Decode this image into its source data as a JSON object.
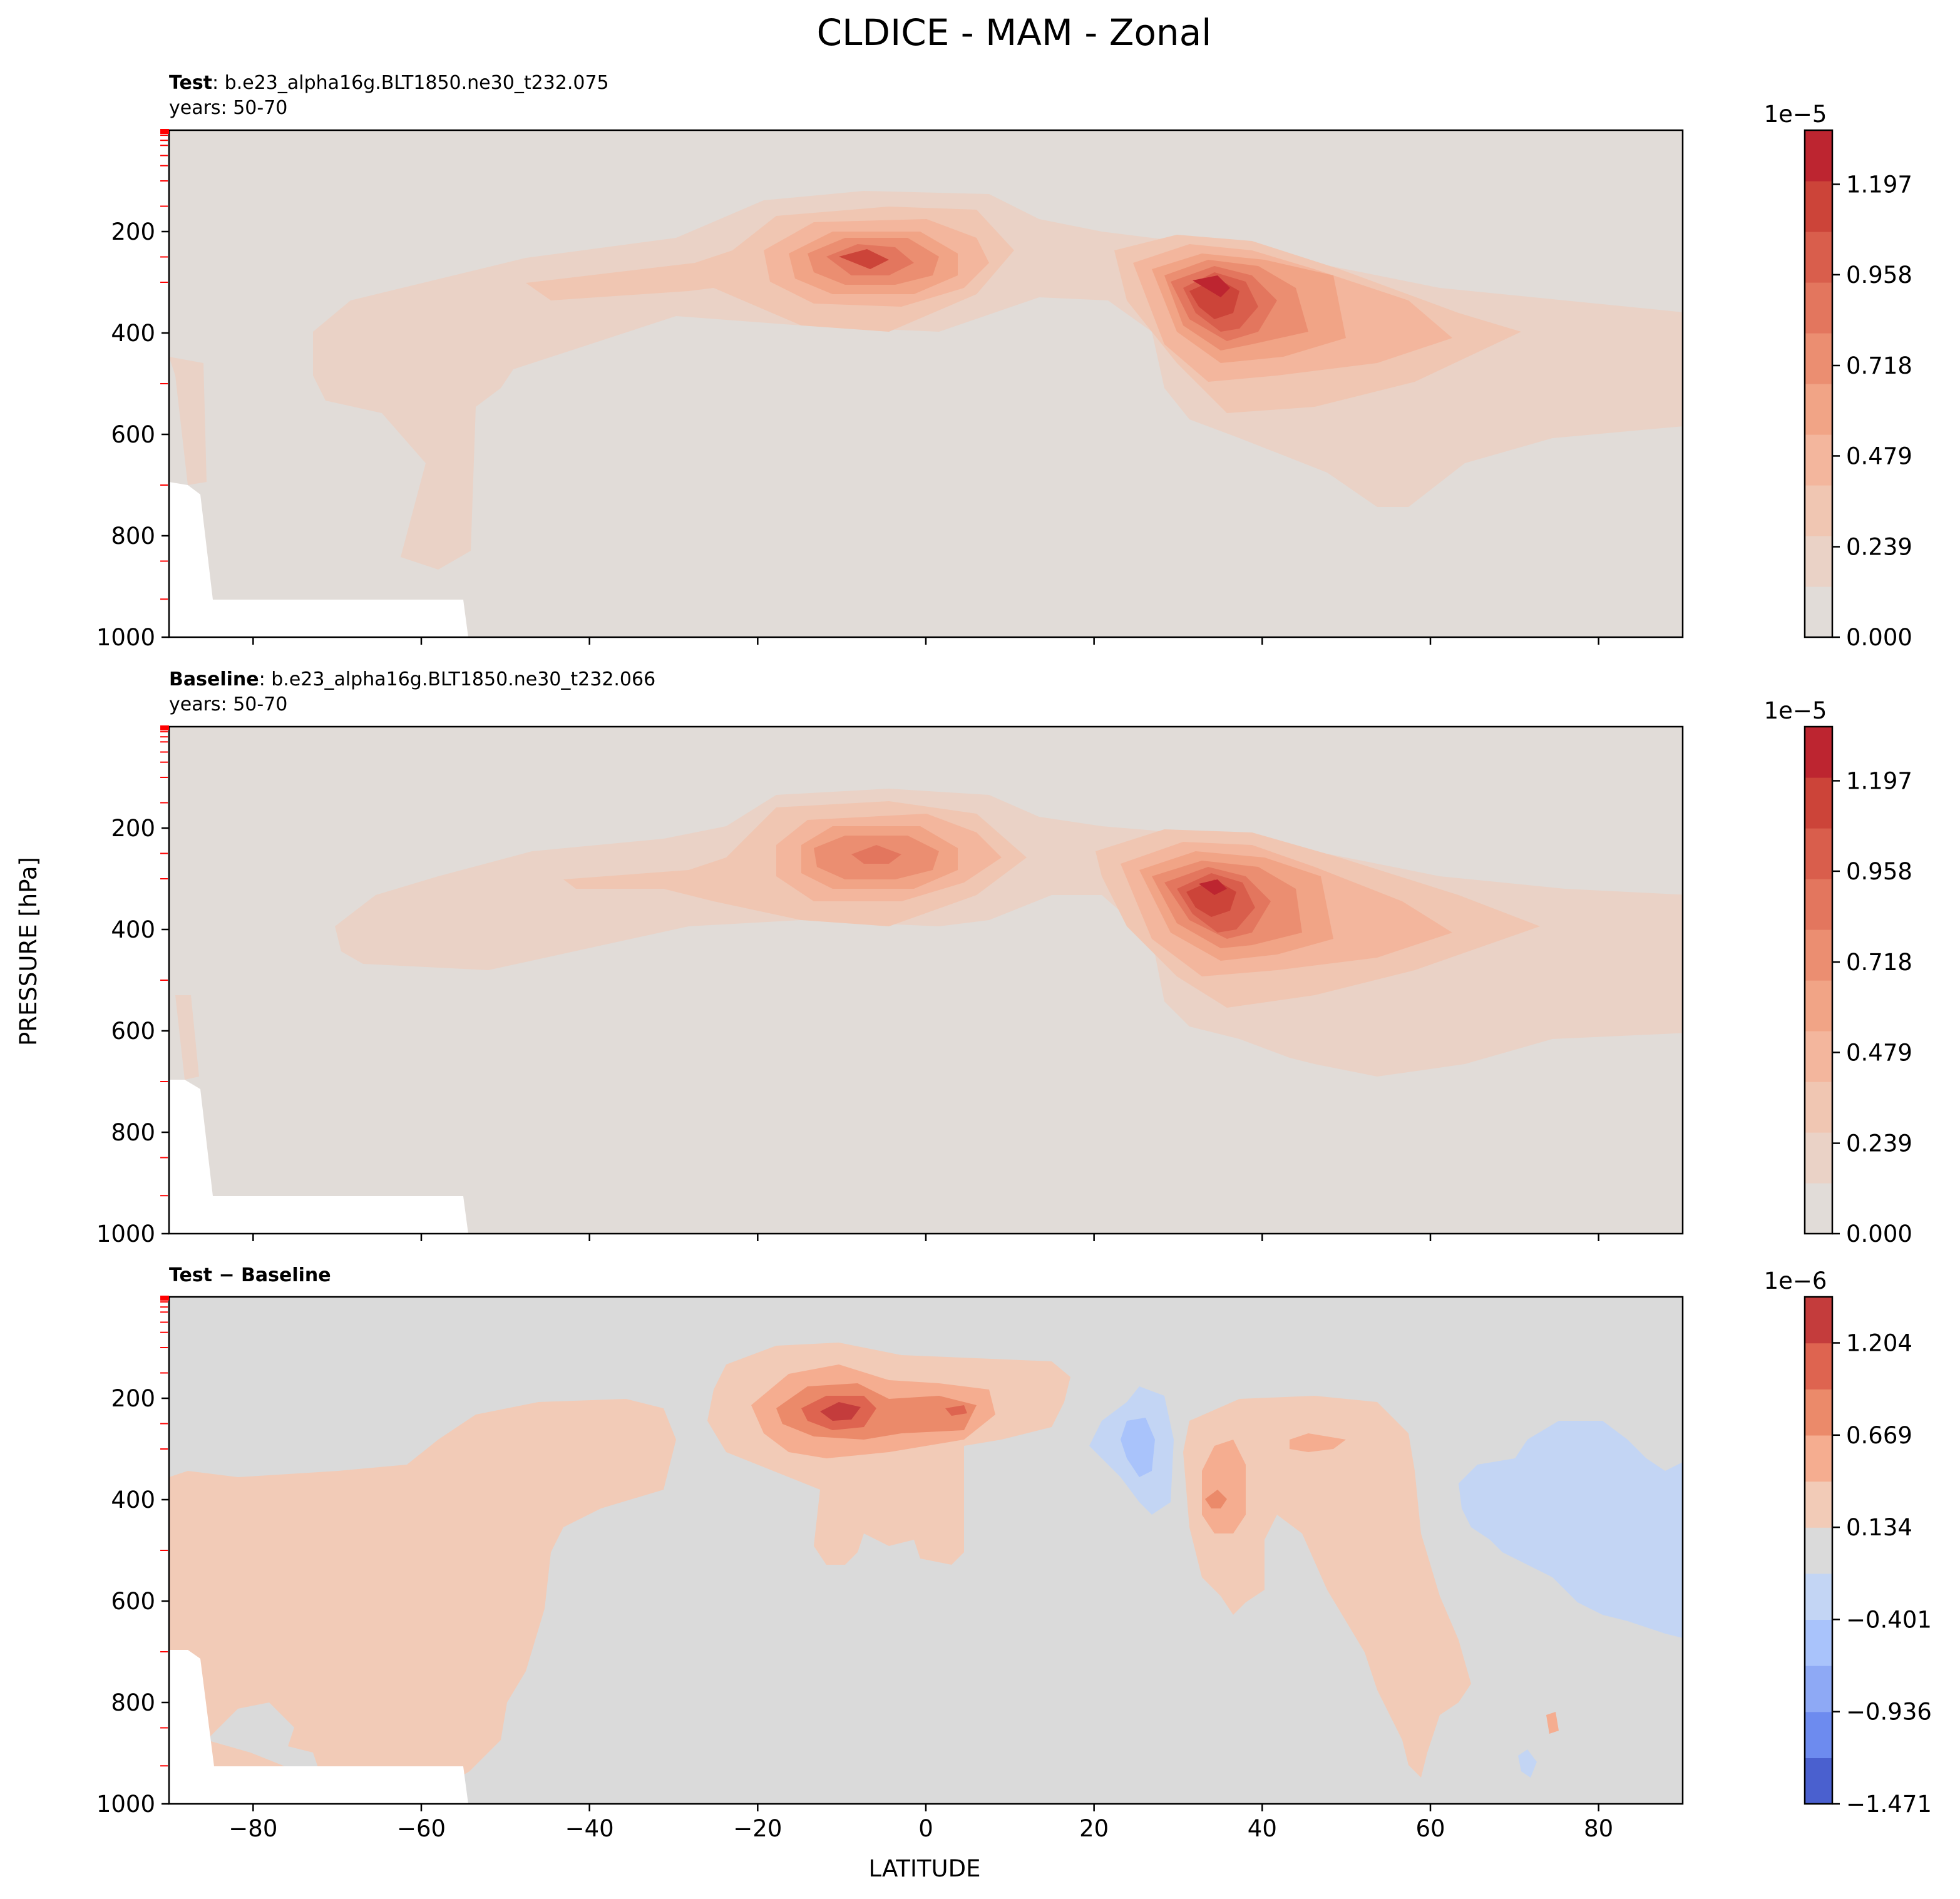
{
  "figure": {
    "title": "CLDICE - MAM - Zonal",
    "ylabel": "PRESSURE [hPa]",
    "xlabel": "LATITUDE"
  },
  "chart_data": [
    {
      "type": "contour",
      "panel": "test",
      "label_bold": "Test",
      "label_rest": ": b.e23_alpha16g.BLT1850.ne30_t232.075",
      "years": "years: 50-70",
      "xlim": [
        -90,
        90
      ],
      "ylim": [
        1000,
        0
      ],
      "x_ticks": [
        -80,
        -60,
        -40,
        -20,
        0,
        20,
        40,
        60,
        80
      ],
      "y_ticks": [
        200,
        400,
        600,
        800,
        1000
      ],
      "colorbar": {
        "scale": "1e−5",
        "ticks": [
          "0.000",
          "0.239",
          "0.479",
          "0.718",
          "0.958",
          "1.197"
        ],
        "tick_values": [
          0.0,
          0.239,
          0.479,
          0.718,
          0.958,
          1.197
        ],
        "range": [
          0.0,
          1.34
        ],
        "levels": [
          "#e1dcd8",
          "#ead2c6",
          "#f0c6b2",
          "#f3b69d",
          "#f1a486",
          "#eb8e71",
          "#e3765e",
          "#d95e4c",
          "#cc4439",
          "#bd2530"
        ]
      },
      "maxima": [
        {
          "name": "tropical-max",
          "lat": -6,
          "p": 255,
          "value": 1.0
        },
        {
          "name": "nh-midlat-max",
          "lat": 35,
          "p": 310,
          "value": 1.25
        }
      ]
    },
    {
      "type": "contour",
      "panel": "baseline",
      "label_bold": "Baseline",
      "label_rest": ": b.e23_alpha16g.BLT1850.ne30_t232.066",
      "years": "years: 50-70",
      "xlim": [
        -90,
        90
      ],
      "ylim": [
        1000,
        0
      ],
      "x_ticks": [
        -80,
        -60,
        -40,
        -20,
        0,
        20,
        40,
        60,
        80
      ],
      "y_ticks": [
        200,
        400,
        600,
        800,
        1000
      ],
      "colorbar": {
        "scale": "1e−5",
        "ticks": [
          "0.000",
          "0.239",
          "0.479",
          "0.718",
          "0.958",
          "1.197"
        ],
        "tick_values": [
          0.0,
          0.239,
          0.479,
          0.718,
          0.958,
          1.197
        ],
        "range": [
          0.0,
          1.34
        ],
        "levels": [
          "#e1dcd8",
          "#ead2c6",
          "#f0c6b2",
          "#f3b69d",
          "#f1a486",
          "#eb8e71",
          "#e3765e",
          "#d95e4c",
          "#cc4439",
          "#bd2530"
        ]
      },
      "maxima": [
        {
          "name": "tropical-max",
          "lat": -6,
          "p": 250,
          "value": 0.8
        },
        {
          "name": "nh-midlat-max",
          "lat": 34,
          "p": 310,
          "value": 1.25
        }
      ]
    },
    {
      "type": "contour",
      "panel": "difference",
      "label_bold": "Test − Baseline",
      "xlim": [
        -90,
        90
      ],
      "ylim": [
        1000,
        0
      ],
      "x_ticks": [
        -80,
        -60,
        -40,
        -20,
        0,
        20,
        40,
        60,
        80
      ],
      "y_ticks": [
        200,
        400,
        600,
        800,
        1000
      ],
      "colorbar": {
        "scale": "1e−6",
        "ticks": [
          "−1.471",
          "−0.936",
          "−0.401",
          "0.134",
          "0.669",
          "1.204"
        ],
        "tick_values": [
          -1.471,
          -0.936,
          -0.401,
          0.134,
          0.669,
          1.204
        ],
        "range": [
          -1.471,
          1.471
        ],
        "levels": [
          "#4a60cf",
          "#6d8bef",
          "#8ea9f5",
          "#a9c3fb",
          "#c3d5f4",
          "#dadada",
          "#f2cbb7",
          "#f5ad90",
          "#eb8a6a",
          "#de6450",
          "#c43c3c"
        ]
      },
      "maxima": [
        {
          "name": "tropical-max",
          "lat": -9,
          "p": 255,
          "value": 1.2
        },
        {
          "name": "nh-negative",
          "lat": 25,
          "p": 340,
          "value": -0.6
        },
        {
          "name": "arctic-negative",
          "lat": 80,
          "p": 420,
          "value": -0.3
        }
      ]
    }
  ]
}
